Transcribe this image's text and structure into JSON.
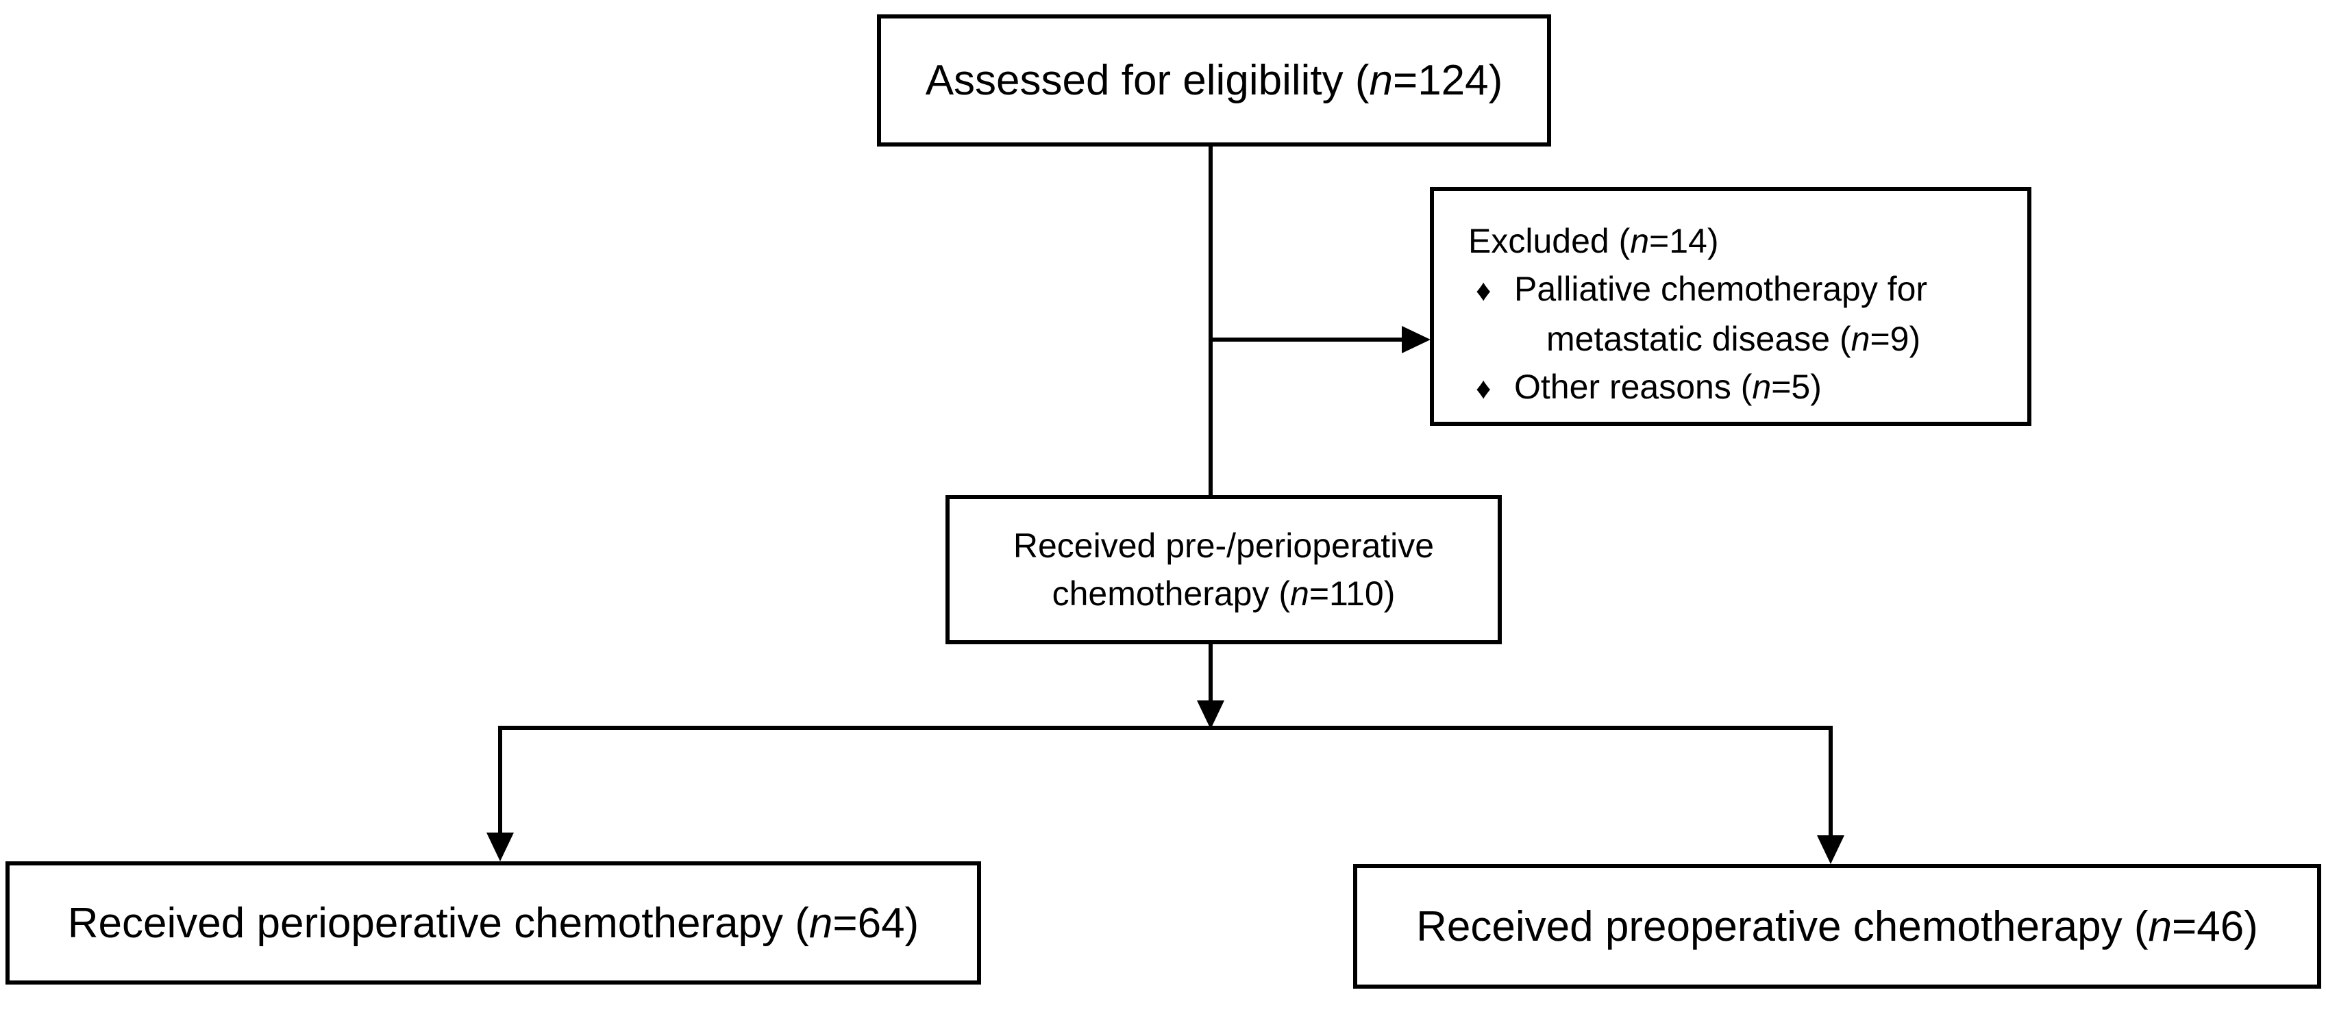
{
  "colors": {
    "background": "#ffffff",
    "line": "#000000",
    "text": "#000000"
  },
  "bullet_char": "♦",
  "boxes": {
    "assessed": {
      "pre": "Assessed for eligibility (",
      "n": "n",
      "post": "=124)"
    },
    "excluded": {
      "title": {
        "pre": "Excluded (",
        "n": "n",
        "post": "=14)"
      },
      "item1": {
        "line1": "Palliative chemotherapy for",
        "line2": {
          "pre": "metastatic disease (",
          "n": "n",
          "post": "=9)"
        }
      },
      "item2": {
        "pre": "Other reasons (",
        "n": "n",
        "post": "=5)"
      }
    },
    "received": {
      "line1": "Received pre-/perioperative",
      "line2": {
        "pre": "chemotherapy (",
        "n": "n",
        "post": "=110)"
      }
    },
    "perioperative": {
      "pre": "Received perioperative chemotherapy (",
      "n": "n",
      "post": "=64)"
    },
    "preoperative": {
      "pre": "Received preoperative chemotherapy (",
      "n": "n",
      "post": "=46)"
    }
  }
}
